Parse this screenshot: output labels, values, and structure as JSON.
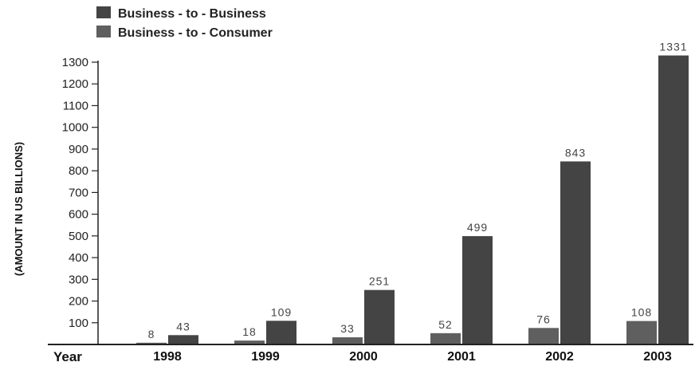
{
  "chart_data": {
    "type": "bar",
    "categories": [
      "1998",
      "1999",
      "2000",
      "2001",
      "2002",
      "2003"
    ],
    "series": [
      {
        "name": "Business - to - Consumer",
        "values": [
          8,
          18,
          33,
          52,
          76,
          108
        ],
        "color": "#5f5f5f"
      },
      {
        "name": "Business - to - Business",
        "values": [
          43,
          109,
          251,
          499,
          843,
          1331
        ],
        "color": "#444444"
      }
    ],
    "legend_order": [
      "Business - to - Business",
      "Business - to - Consumer"
    ],
    "yticks": [
      "100",
      "200",
      "300",
      "400",
      "500",
      "600",
      "700",
      "800",
      "900",
      "1000",
      "1100",
      "1200",
      "1300"
    ],
    "xlabel": "Year",
    "ylabel": "(AMOUNT IN US BILLIONS)",
    "ylim": [
      0,
      1300
    ],
    "grid": false,
    "legend_position": "top-left"
  }
}
